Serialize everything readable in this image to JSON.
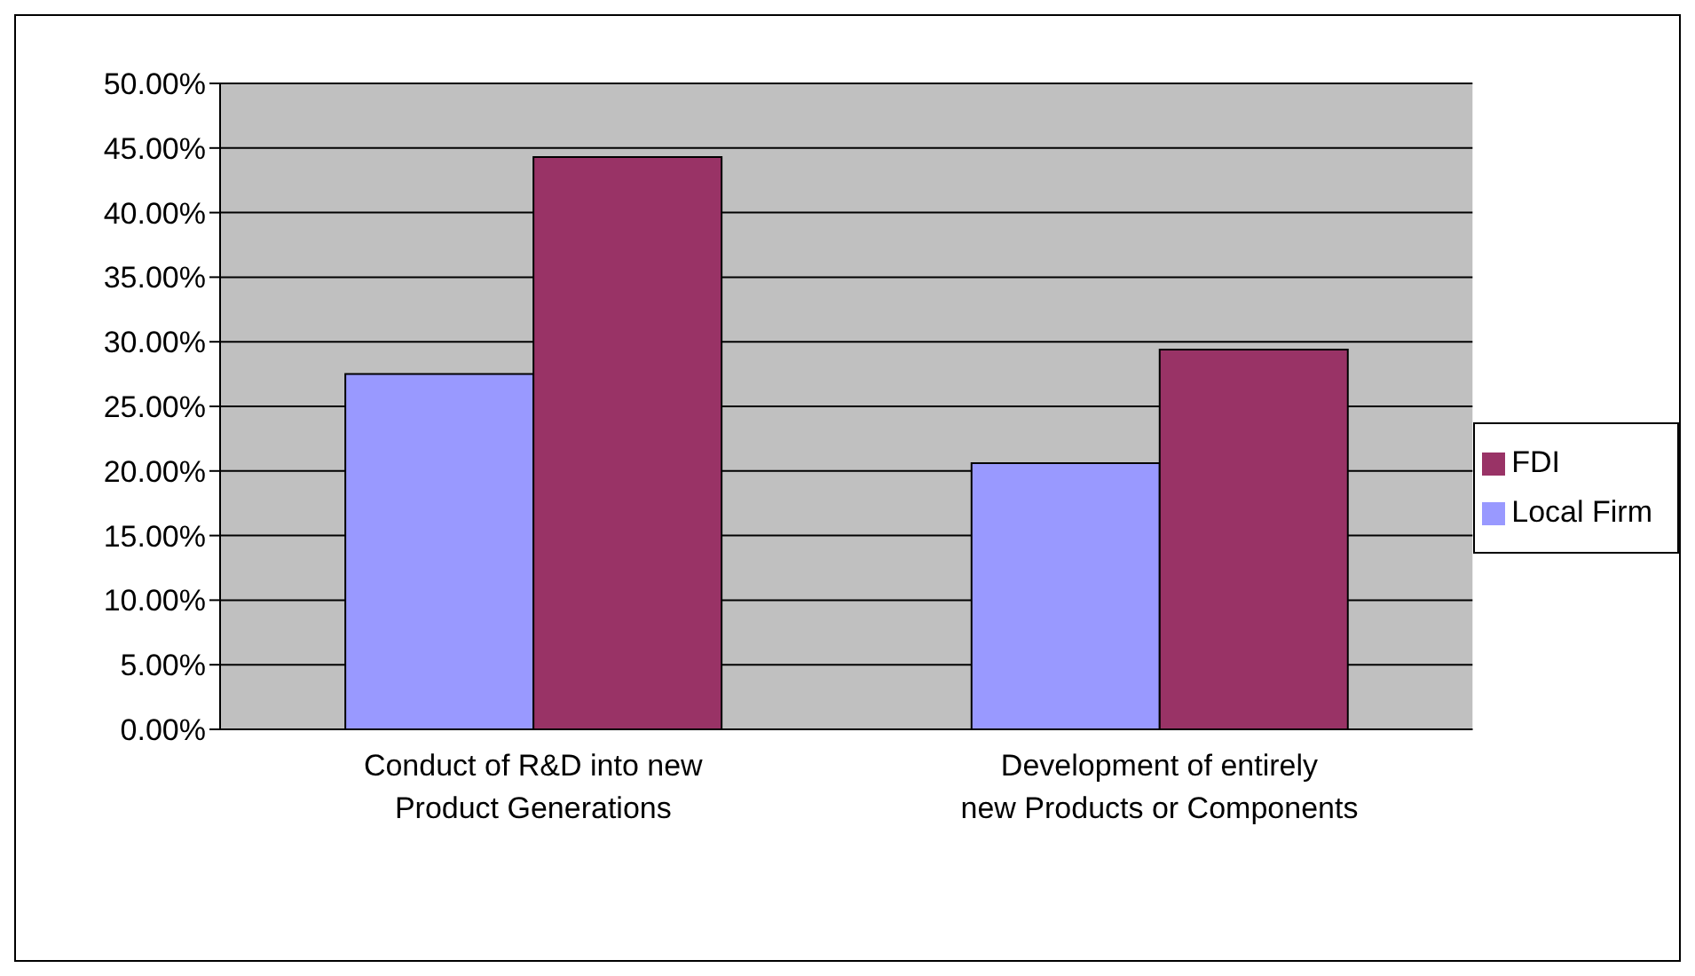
{
  "chart_data": {
    "type": "bar",
    "categories": [
      "Conduct of R&D into new Product Generations",
      "Development of entirely new Products or Components"
    ],
    "series": [
      {
        "name": "Local Firm",
        "color": "#9999ff",
        "values": [
          27.5,
          20.6
        ]
      },
      {
        "name": "FDI",
        "color": "#993366",
        "values": [
          44.3,
          29.4
        ]
      }
    ],
    "ylim": [
      0,
      50
    ],
    "yticks": [
      {
        "value": 0,
        "label": "0.00%"
      },
      {
        "value": 5,
        "label": "5.00%"
      },
      {
        "value": 10,
        "label": "10.00%"
      },
      {
        "value": 15,
        "label": "15.00%"
      },
      {
        "value": 20,
        "label": "20.00%"
      },
      {
        "value": 25,
        "label": "25.00%"
      },
      {
        "value": 30,
        "label": "30.00%"
      },
      {
        "value": 35,
        "label": "35.00%"
      },
      {
        "value": 40,
        "label": "40.00%"
      },
      {
        "value": 45,
        "label": "45.00%"
      },
      {
        "value": 50,
        "label": "50.00%"
      }
    ],
    "grid": "y",
    "legend": "right"
  }
}
